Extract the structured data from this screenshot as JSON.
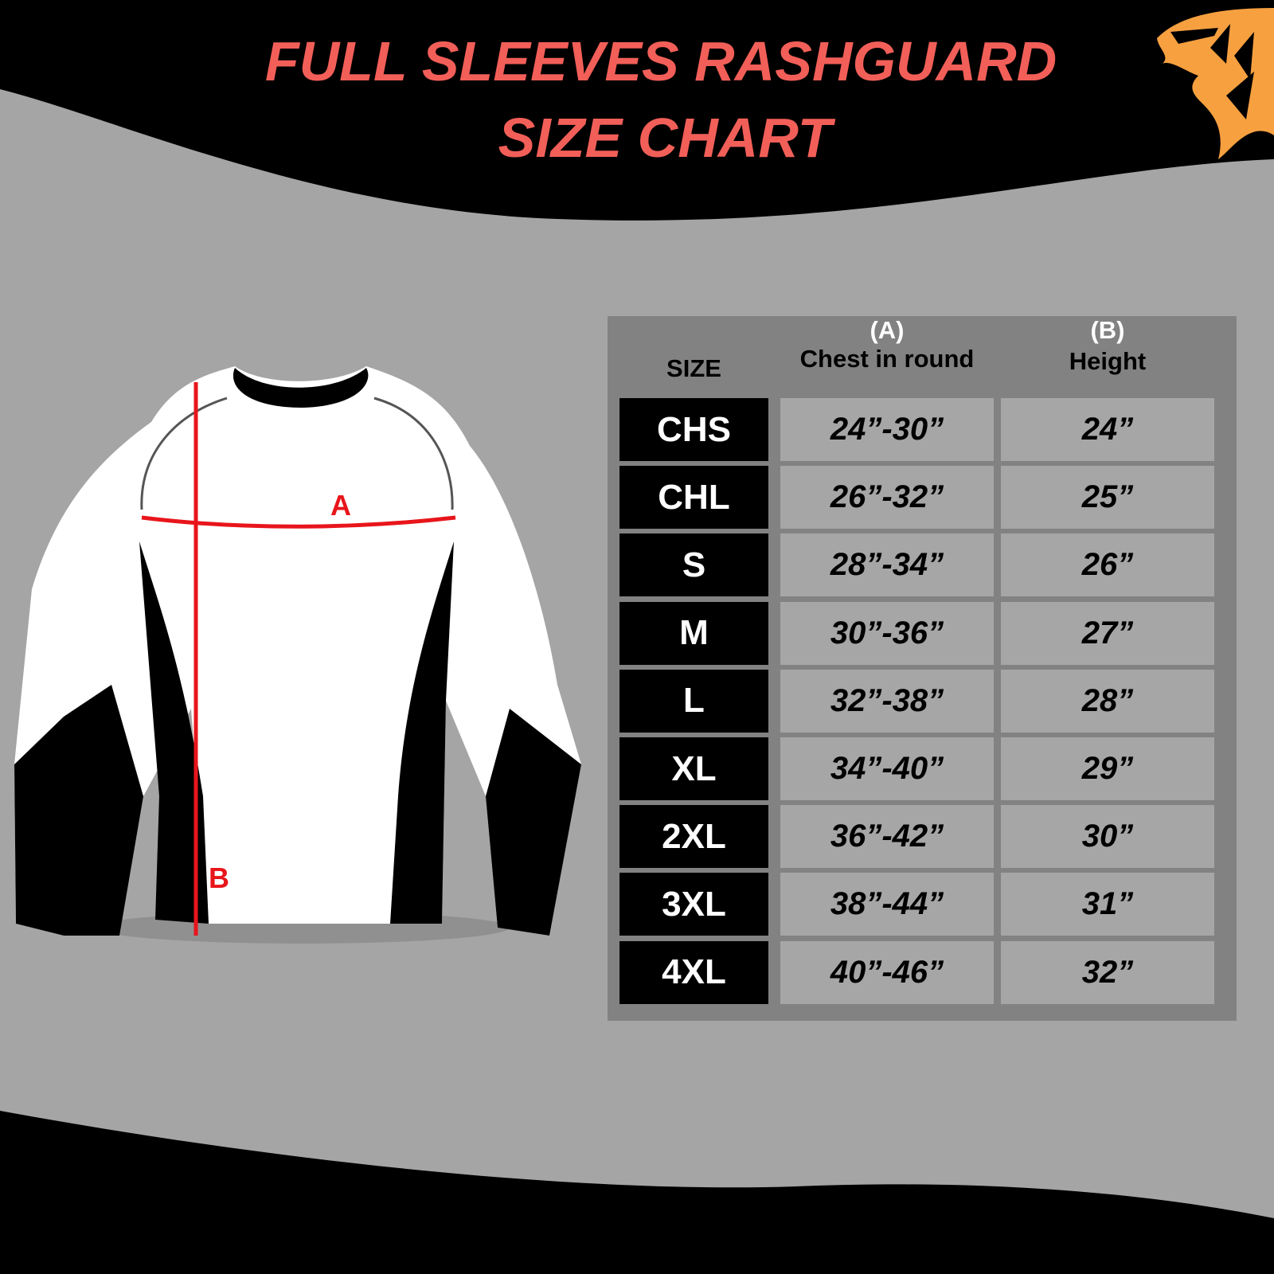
{
  "title": {
    "line1": "FULL SLEEVES RASHGUARD",
    "line2": "SIZE CHART"
  },
  "logo": "tiger-head-logo",
  "colors": {
    "title": "#f25f58",
    "logo": "#f7a040",
    "measure_line": "#e8151b",
    "background": "#a5a5a5"
  },
  "diagram": {
    "label_a": "A",
    "label_b": "B"
  },
  "table": {
    "headers": {
      "size": "SIZE",
      "chest_letter": "(A)",
      "chest": "Chest in round",
      "height_letter": "(B)",
      "height": "Height"
    },
    "rows": [
      {
        "size": "CHS",
        "chest": "24”-30”",
        "height": "24”"
      },
      {
        "size": "CHL",
        "chest": "26”-32”",
        "height": "25”"
      },
      {
        "size": "S",
        "chest": "28”-34”",
        "height": "26”"
      },
      {
        "size": "M",
        "chest": "30”-36”",
        "height": "27”"
      },
      {
        "size": "L",
        "chest": "32”-38”",
        "height": "28”"
      },
      {
        "size": "XL",
        "chest": "34”-40”",
        "height": "29”"
      },
      {
        "size": "2XL",
        "chest": "36”-42”",
        "height": "30”"
      },
      {
        "size": "3XL",
        "chest": "38”-44”",
        "height": "31”"
      },
      {
        "size": "4XL",
        "chest": "40”-46”",
        "height": "32”"
      }
    ]
  }
}
